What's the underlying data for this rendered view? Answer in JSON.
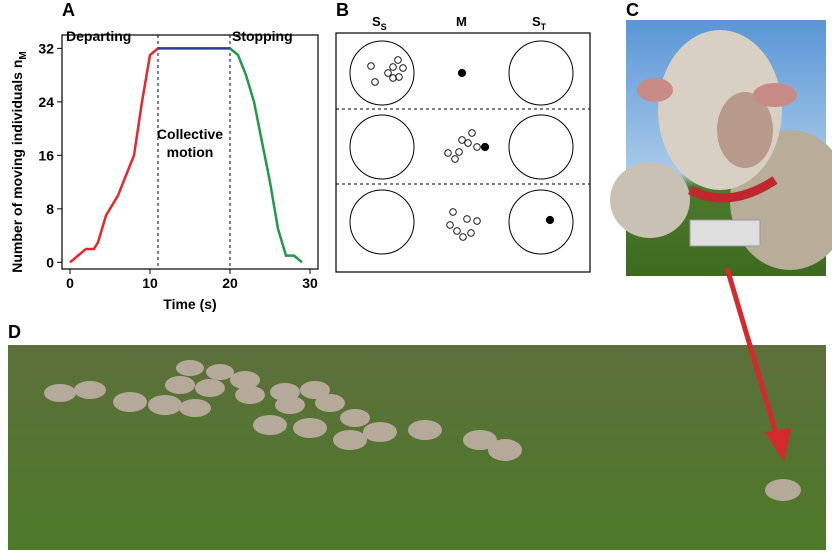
{
  "panels": [
    "A",
    "B",
    "C",
    "D"
  ],
  "chart_data": {
    "type": "line",
    "xlabel": "Time (s)",
    "ylabel": "Number of moving individuals n",
    "ylabel_sub": "M",
    "annotations": [
      "Departing",
      "Collective motion",
      "Stopping"
    ],
    "series": [
      {
        "color": "#e8262b",
        "x": [
          0,
          1,
          2,
          3,
          3.5,
          4.5,
          6,
          7,
          8,
          9,
          10,
          11
        ],
        "values": [
          0,
          1,
          2,
          2,
          3,
          7,
          10,
          13,
          16,
          24,
          31,
          32
        ]
      },
      {
        "color": "#2b3a93",
        "x": [
          11,
          20
        ],
        "values": [
          32,
          32
        ]
      },
      {
        "color": "#1f9a48",
        "x": [
          20,
          21,
          22,
          23,
          24,
          25,
          26,
          27,
          28,
          29
        ],
        "values": [
          32,
          31,
          28,
          24,
          18,
          12,
          5,
          1,
          1,
          0
        ]
      }
    ],
    "vlines": [
      11,
      20
    ],
    "xlim": [
      -1,
      31
    ],
    "xticks": [
      0,
      10,
      20,
      30
    ],
    "ylim": [
      -1,
      34
    ],
    "yticks": [
      0,
      8,
      16,
      24,
      32
    ]
  },
  "diagram": {
    "columns": [
      {
        "label": "S",
        "sub": "S"
      },
      {
        "label": "M"
      },
      {
        "label": "S",
        "sub": "T"
      }
    ]
  }
}
